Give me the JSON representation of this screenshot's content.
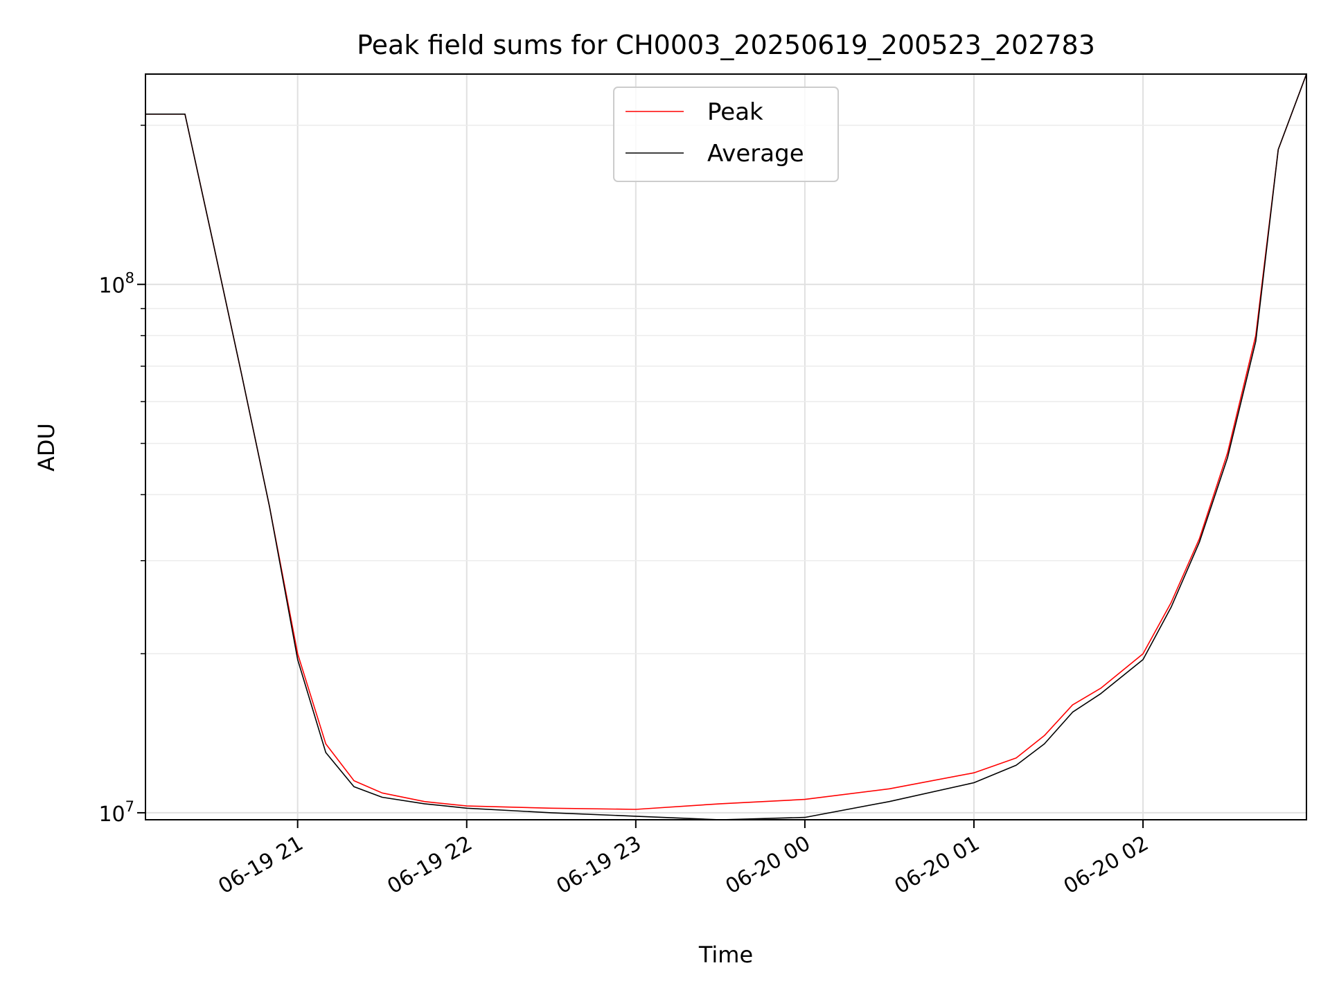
{
  "chart_data": {
    "type": "line",
    "title": "Peak field sums for CH0003_20250619_200523_202783",
    "xlabel": "Time",
    "ylabel": "ADU",
    "x_scale": "time",
    "y_scale": "log",
    "xlim": [
      "2025-06-19 20:06",
      "2025-06-20 02:58"
    ],
    "ylim": [
      9700000.0,
      250000000.0
    ],
    "x_ticks": [
      {
        "value": "2025-06-19 21:00",
        "label": "06-19 21"
      },
      {
        "value": "2025-06-19 22:00",
        "label": "06-19 22"
      },
      {
        "value": "2025-06-19 23:00",
        "label": "06-19 23"
      },
      {
        "value": "2025-06-20 00:00",
        "label": "06-20 00"
      },
      {
        "value": "2025-06-20 01:00",
        "label": "06-20 01"
      },
      {
        "value": "2025-06-20 02:00",
        "label": "06-20 02"
      }
    ],
    "y_ticks": [
      {
        "value": 10000000,
        "base": "10",
        "exp": "7"
      },
      {
        "value": 100000000,
        "base": "10",
        "exp": "8"
      }
    ],
    "grid": true,
    "legend": {
      "position": "top-center"
    },
    "series": [
      {
        "name": "Peak",
        "color": "#ff0000",
        "x": [
          "2025-06-19 20:06",
          "2025-06-19 20:20",
          "2025-06-19 20:30",
          "2025-06-19 20:40",
          "2025-06-19 20:50",
          "2025-06-19 21:00",
          "2025-06-19 21:10",
          "2025-06-19 21:20",
          "2025-06-19 21:30",
          "2025-06-19 21:45",
          "2025-06-19 22:00",
          "2025-06-19 22:30",
          "2025-06-19 23:00",
          "2025-06-19 23:30",
          "2025-06-20 00:00",
          "2025-06-20 00:30",
          "2025-06-20 01:00",
          "2025-06-20 01:15",
          "2025-06-20 01:25",
          "2025-06-20 01:35",
          "2025-06-20 01:45",
          "2025-06-20 02:00",
          "2025-06-20 02:10",
          "2025-06-20 02:20",
          "2025-06-20 02:30",
          "2025-06-20 02:40",
          "2025-06-20 02:48",
          "2025-06-20 02:58"
        ],
        "y": [
          210000000,
          210000000,
          120000000,
          68000000,
          38000000,
          20000000,
          13500000,
          11500000,
          10900000,
          10500000,
          10300000,
          10200000,
          10150000,
          10400000,
          10600000,
          11100000,
          11900000,
          12700000,
          14000000,
          16000000,
          17200000,
          20000000,
          25000000,
          33000000,
          48000000,
          80000000,
          180000000,
          250000000
        ]
      },
      {
        "name": "Average",
        "color": "#000000",
        "x": [
          "2025-06-19 20:06",
          "2025-06-19 20:20",
          "2025-06-19 20:30",
          "2025-06-19 20:40",
          "2025-06-19 20:50",
          "2025-06-19 21:00",
          "2025-06-19 21:10",
          "2025-06-19 21:20",
          "2025-06-19 21:30",
          "2025-06-19 21:45",
          "2025-06-19 22:00",
          "2025-06-19 22:30",
          "2025-06-19 23:00",
          "2025-06-19 23:30",
          "2025-06-20 00:00",
          "2025-06-20 00:30",
          "2025-06-20 01:00",
          "2025-06-20 01:15",
          "2025-06-20 01:25",
          "2025-06-20 01:35",
          "2025-06-20 01:45",
          "2025-06-20 02:00",
          "2025-06-20 02:10",
          "2025-06-20 02:20",
          "2025-06-20 02:30",
          "2025-06-20 02:40",
          "2025-06-20 02:48",
          "2025-06-20 02:58"
        ],
        "y": [
          210000000,
          210000000,
          120000000,
          68000000,
          38000000,
          19500000,
          13000000,
          11200000,
          10700000,
          10400000,
          10200000,
          10000000,
          9850000,
          9700000,
          9800000,
          10500000,
          11400000,
          12300000,
          13500000,
          15500000,
          16800000,
          19500000,
          24500000,
          32500000,
          47000000,
          78000000,
          180000000,
          250000000
        ]
      }
    ]
  }
}
